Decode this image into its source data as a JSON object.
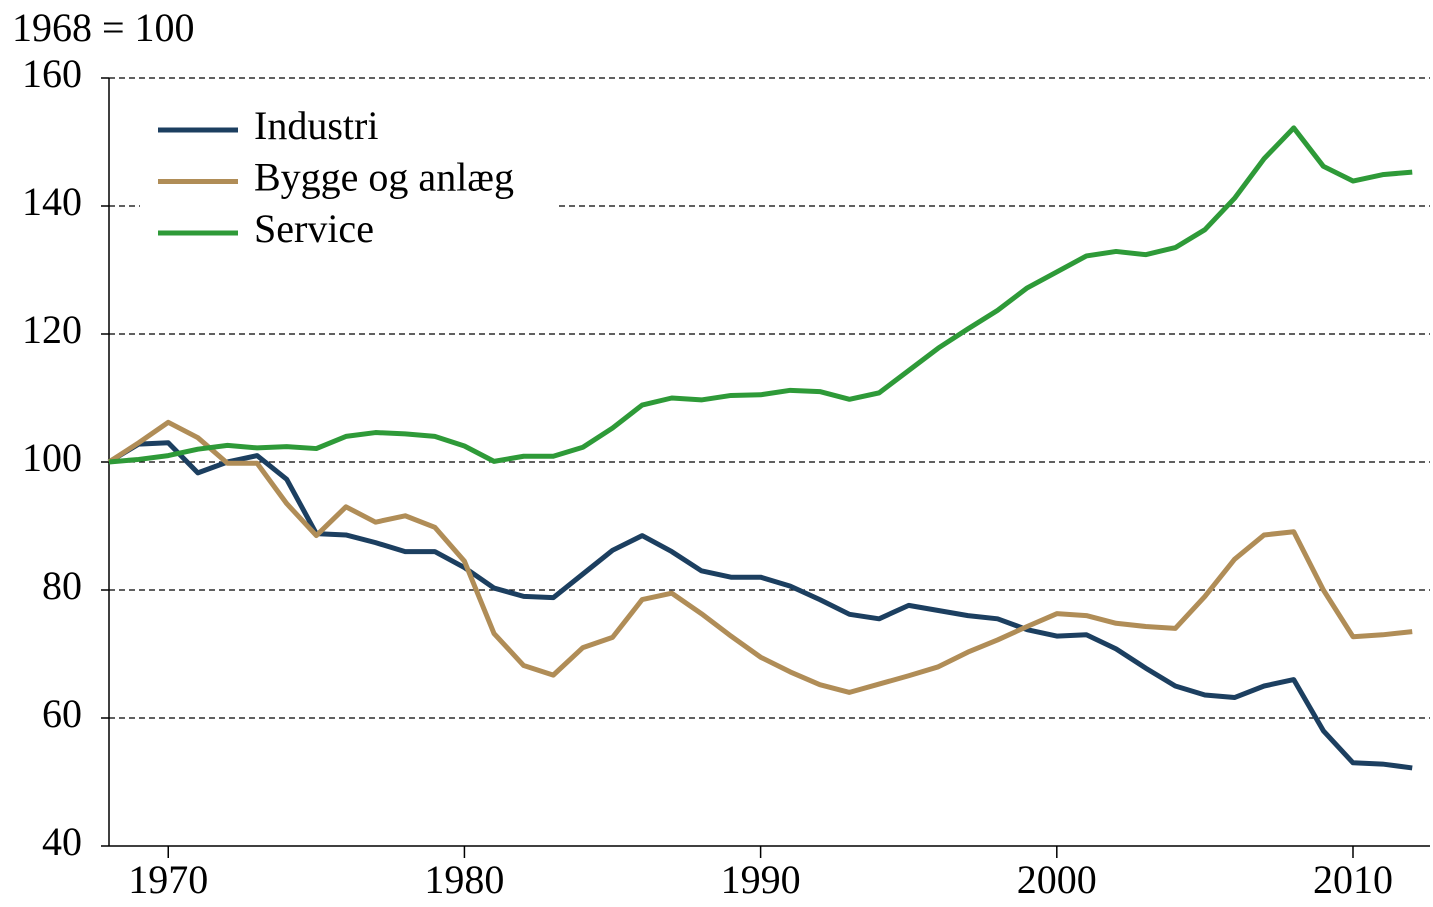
{
  "chart_data": {
    "type": "line",
    "subtitle": "1968 = 100",
    "x": [
      1968,
      1969,
      1970,
      1971,
      1972,
      1973,
      1974,
      1975,
      1976,
      1977,
      1978,
      1979,
      1980,
      1981,
      1982,
      1983,
      1984,
      1985,
      1986,
      1987,
      1988,
      1989,
      1990,
      1991,
      1992,
      1993,
      1994,
      1995,
      1996,
      1997,
      1998,
      1999,
      2000,
      2001,
      2002,
      2003,
      2004,
      2005,
      2006,
      2007,
      2008,
      2009,
      2010,
      2011,
      2012
    ],
    "series": [
      {
        "name": "Industri",
        "color": "#1c3f60",
        "values": [
          100,
          102.8,
          103,
          98.3,
          100,
          101,
          97.3,
          88.8,
          88.6,
          87.4,
          86,
          86,
          83.5,
          80.3,
          79,
          78.8,
          82.5,
          86.2,
          88.5,
          86,
          83,
          82,
          82,
          80.6,
          78.5,
          76.2,
          75.5,
          77.6,
          76.8,
          76,
          75.5,
          73.8,
          72.8,
          73,
          70.8,
          67.8,
          65,
          63.6,
          63.2,
          65,
          66,
          58,
          53,
          52.8,
          52.2
        ]
      },
      {
        "name": "Bygge og anlæg",
        "color": "#b08d57",
        "values": [
          100,
          103,
          106.2,
          103.8,
          99.8,
          99.8,
          93.5,
          88.5,
          93,
          90.6,
          91.6,
          89.8,
          84.5,
          73.2,
          68.2,
          66.7,
          71,
          72.6,
          78.5,
          79.5,
          76.3,
          72.8,
          69.5,
          67.2,
          65.2,
          64,
          65.3,
          66.6,
          68,
          70.3,
          72.2,
          74.3,
          76.3,
          76,
          74.8,
          74.3,
          74,
          79,
          84.8,
          88.6,
          89.1,
          80,
          72.7,
          73,
          73.5
        ]
      },
      {
        "name": "Service",
        "color": "#2e9a38",
        "values": [
          100,
          100.4,
          101,
          102,
          102.6,
          102.2,
          102.4,
          102.1,
          104,
          104.6,
          104.4,
          104,
          102.5,
          100.1,
          100.9,
          100.9,
          102.3,
          105.3,
          108.9,
          110,
          109.7,
          110.4,
          110.5,
          111.2,
          111,
          109.8,
          110.8,
          114.3,
          117.8,
          120.8,
          123.7,
          127.2,
          129.7,
          132.2,
          132.9,
          132.4,
          133.5,
          136.3,
          141.2,
          147.4,
          152.2,
          146.2,
          143.9,
          144.9,
          145.3
        ]
      }
    ],
    "xlim": [
      1968,
      2012.6
    ],
    "xticks": [
      1970,
      1980,
      1990,
      2000,
      2010
    ],
    "ylim": [
      40,
      160
    ],
    "yticks": [
      40,
      60,
      80,
      100,
      120,
      140,
      160
    ],
    "grid": true,
    "legend": "upper left"
  }
}
